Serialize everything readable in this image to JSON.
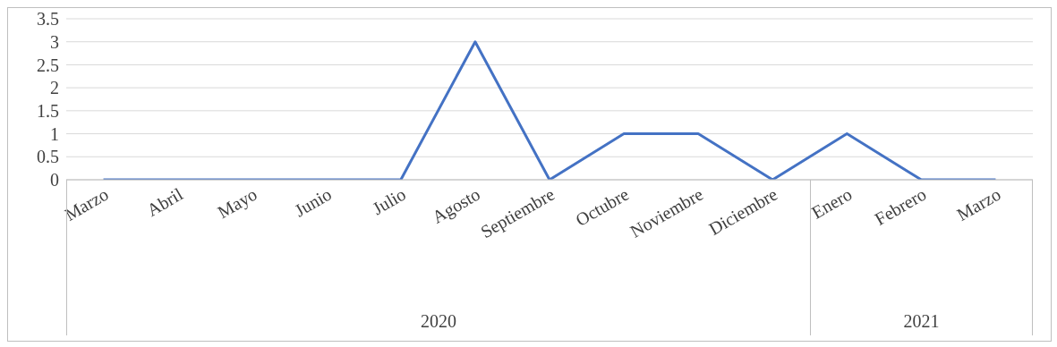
{
  "chart_data": {
    "type": "line",
    "categories": [
      "Marzo",
      "Abril",
      "Mayo",
      "Junio",
      "Julio",
      "Agosto",
      "Septiembre",
      "Octubre",
      "Noviembre",
      "Diciembre",
      "Enero",
      "Febrero",
      "Marzo"
    ],
    "series": [
      {
        "color": "#4472c4",
        "values": [
          0,
          0,
          0,
          0,
          0,
          3,
          0,
          1,
          1,
          0,
          1,
          0,
          0
        ]
      }
    ],
    "ylim": [
      0,
      3.5
    ],
    "yticks": [
      0,
      0.5,
      1,
      1.5,
      2,
      2.5,
      3,
      3.5
    ],
    "grid": "y",
    "annotations": [
      "2020",
      "2021"
    ]
  }
}
